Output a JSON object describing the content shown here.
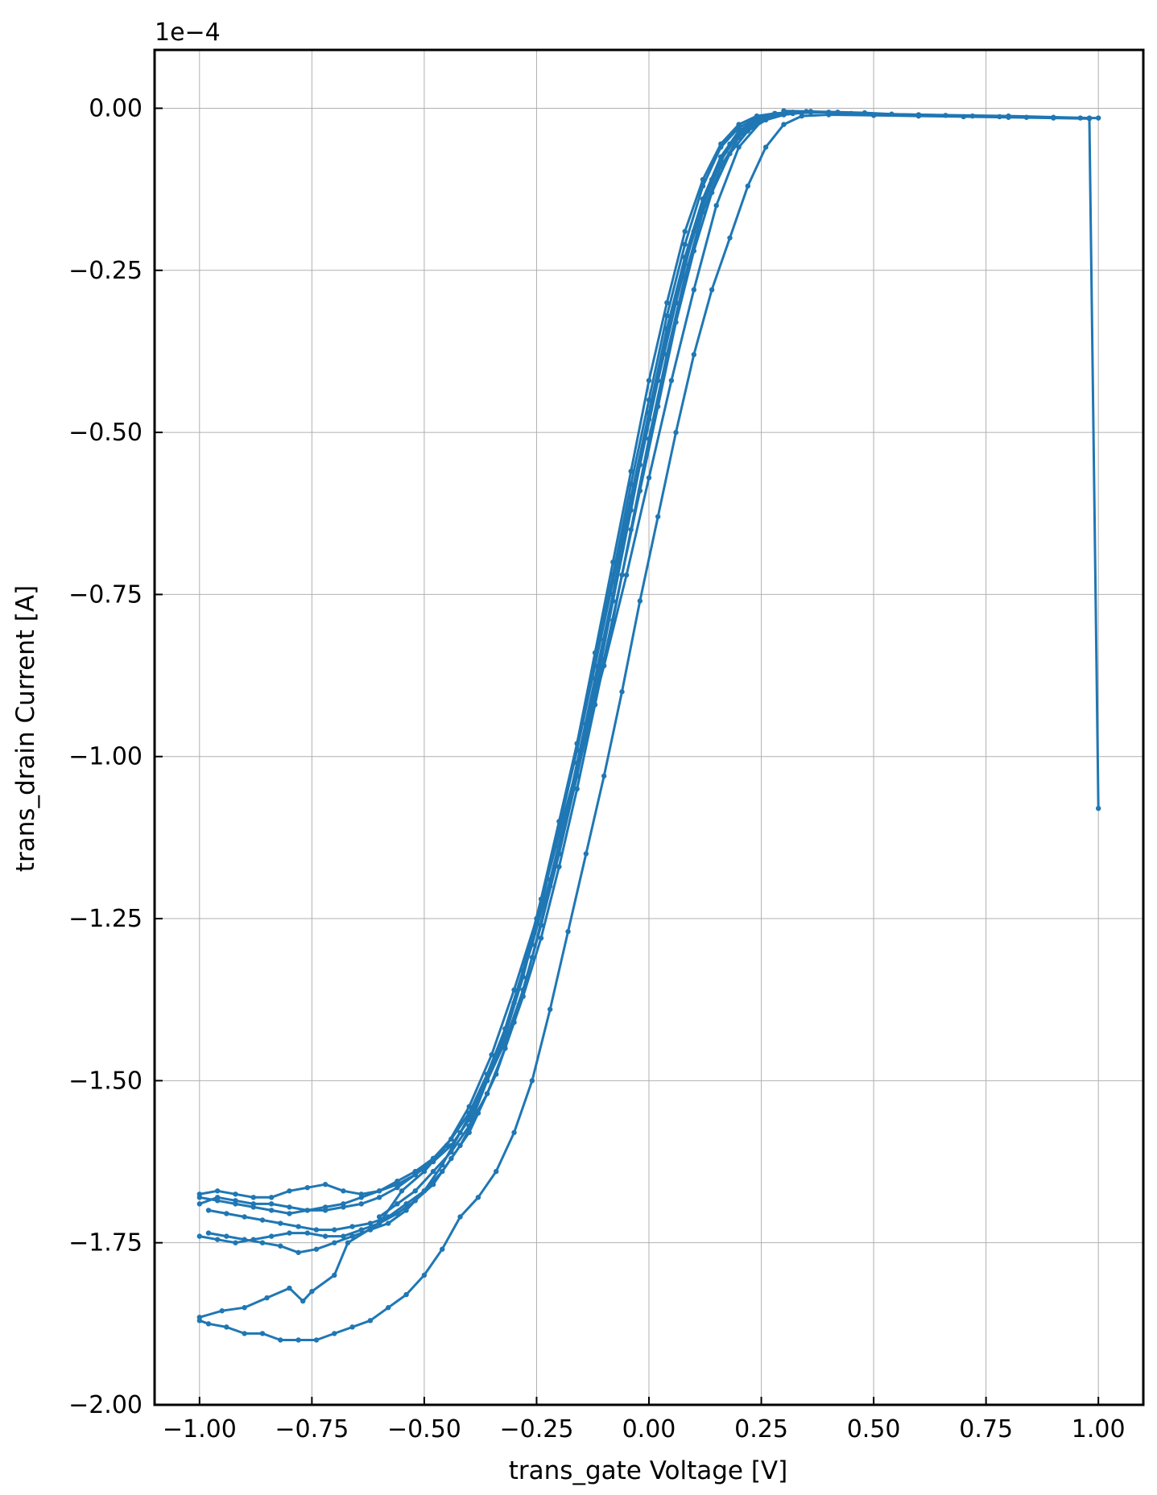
{
  "chart_data": {
    "type": "line",
    "title": "",
    "xlabel": "trans_gate Voltage [V]",
    "ylabel": "trans_drain Current [A]",
    "y_offset_label": "1e−4",
    "xlim": [
      -1.1,
      1.1
    ],
    "ylim": [
      -2.0,
      0.09
    ],
    "x_ticks": [
      -1.0,
      -0.75,
      -0.5,
      -0.25,
      0.0,
      0.25,
      0.5,
      0.75,
      1.0
    ],
    "x_tick_labels": [
      "−1.00",
      "−0.75",
      "−0.50",
      "−0.25",
      "0.00",
      "0.25",
      "0.50",
      "0.75",
      "1.00"
    ],
    "y_ticks": [
      0.0,
      -0.25,
      -0.5,
      -0.75,
      -1.0,
      -1.25,
      -1.5,
      -1.75,
      -2.0
    ],
    "y_tick_labels": [
      "0.00",
      "−0.25",
      "−0.50",
      "−0.75",
      "−1.00",
      "−1.25",
      "−1.50",
      "−1.75",
      "−2.00"
    ],
    "grid": true,
    "color": "#1f77b4",
    "marker": "dot",
    "series": [
      {
        "x": [
          1.0,
          0.98,
          0.9,
          0.8,
          0.7,
          0.6,
          0.5,
          0.4,
          0.34,
          0.3,
          0.26,
          0.22,
          0.18,
          0.14,
          0.1,
          0.06,
          0.02,
          -0.02,
          -0.06,
          -0.1,
          -0.14,
          -0.18,
          -0.22,
          -0.26,
          -0.3,
          -0.34,
          -0.38,
          -0.42,
          -0.46,
          -0.5,
          -0.54,
          -0.58,
          -0.62,
          -0.66,
          -0.7,
          -0.74,
          -0.78,
          -0.82,
          -0.86,
          -0.9,
          -0.94,
          -0.98,
          -1.0
        ],
        "y": [
          -1.08,
          -0.016,
          -0.015,
          -0.014,
          -0.013,
          -0.012,
          -0.011,
          -0.01,
          -0.012,
          -0.025,
          -0.06,
          -0.12,
          -0.2,
          -0.28,
          -0.38,
          -0.5,
          -0.63,
          -0.76,
          -0.9,
          -1.03,
          -1.15,
          -1.27,
          -1.39,
          -1.5,
          -1.58,
          -1.64,
          -1.68,
          -1.71,
          -1.76,
          -1.8,
          -1.83,
          -1.85,
          -1.87,
          -1.88,
          -1.89,
          -1.9,
          -1.9,
          -1.9,
          -1.89,
          -1.89,
          -1.88,
          -1.875,
          -1.87
        ]
      },
      {
        "x": [
          -1.0,
          -0.95,
          -0.9,
          -0.85,
          -0.8,
          -0.77,
          -0.75,
          -0.7,
          -0.67,
          -0.6,
          -0.55,
          -0.5,
          -0.45,
          -0.4,
          -0.35,
          -0.3,
          -0.25,
          -0.2,
          -0.15,
          -0.1,
          -0.05,
          0.0,
          0.05,
          0.1,
          0.15,
          0.2,
          0.25,
          0.3,
          0.35,
          0.45,
          0.6,
          0.8,
          0.98
        ],
        "y": [
          -1.865,
          -1.855,
          -1.85,
          -1.835,
          -1.82,
          -1.84,
          -1.825,
          -1.8,
          -1.75,
          -1.72,
          -1.67,
          -1.64,
          -1.6,
          -1.54,
          -1.46,
          -1.36,
          -1.25,
          -1.12,
          -0.99,
          -0.86,
          -0.72,
          -0.57,
          -0.42,
          -0.28,
          -0.15,
          -0.06,
          -0.02,
          -0.01,
          -0.005,
          -0.008,
          -0.01,
          -0.012,
          -0.015
        ]
      },
      {
        "x": [
          -0.98,
          -0.94,
          -0.9,
          -0.86,
          -0.82,
          -0.78,
          -0.74,
          -0.7,
          -0.66,
          -0.62,
          -0.58,
          -0.54,
          -0.5,
          -0.46,
          -0.42,
          -0.38,
          -0.34,
          -0.3,
          -0.26,
          -0.22,
          -0.18,
          -0.14,
          -0.1,
          -0.06,
          -0.02,
          0.02,
          0.06,
          0.1,
          0.14,
          0.18,
          0.22,
          0.26,
          0.3,
          0.34,
          0.4
        ],
        "y": [
          -1.735,
          -1.74,
          -1.745,
          -1.75,
          -1.755,
          -1.765,
          -1.76,
          -1.75,
          -1.74,
          -1.73,
          -1.72,
          -1.7,
          -1.67,
          -1.63,
          -1.58,
          -1.53,
          -1.46,
          -1.38,
          -1.29,
          -1.19,
          -1.08,
          -0.97,
          -0.85,
          -0.72,
          -0.59,
          -0.46,
          -0.33,
          -0.22,
          -0.13,
          -0.07,
          -0.035,
          -0.018,
          -0.01,
          -0.007,
          -0.006
        ]
      },
      {
        "x": [
          -0.4,
          -0.36,
          -0.32,
          -0.28,
          -0.24,
          -0.2,
          -0.16,
          -0.12,
          -0.08,
          -0.04,
          0.0,
          0.04,
          0.08,
          0.12,
          0.16,
          0.2,
          0.24,
          0.28,
          0.32,
          0.36
        ],
        "y": [
          -1.57,
          -1.5,
          -1.42,
          -1.33,
          -1.22,
          -1.1,
          -0.98,
          -0.85,
          -0.72,
          -0.58,
          -0.45,
          -0.32,
          -0.21,
          -0.12,
          -0.06,
          -0.03,
          -0.015,
          -0.008,
          -0.006,
          -0.005
        ]
      },
      {
        "x": [
          -0.98,
          -0.94,
          -0.9,
          -0.86,
          -0.82,
          -0.78,
          -0.74,
          -0.7,
          -0.66,
          -0.62,
          -0.58,
          -0.54,
          -0.5,
          -0.46,
          -0.42,
          -0.38,
          -0.34,
          -0.3,
          -0.26,
          -0.22,
          -0.18,
          -0.14,
          -0.1,
          -0.06,
          -0.02,
          0.02,
          0.06,
          0.1,
          0.14,
          0.18,
          0.22,
          0.26,
          0.3,
          0.34
        ],
        "y": [
          -1.7,
          -1.705,
          -1.71,
          -1.715,
          -1.72,
          -1.725,
          -1.73,
          -1.73,
          -1.725,
          -1.72,
          -1.71,
          -1.69,
          -1.67,
          -1.64,
          -1.6,
          -1.55,
          -1.49,
          -1.41,
          -1.31,
          -1.2,
          -1.08,
          -0.95,
          -0.82,
          -0.68,
          -0.55,
          -0.42,
          -0.3,
          -0.19,
          -0.11,
          -0.055,
          -0.027,
          -0.014,
          -0.009,
          -0.007
        ]
      },
      {
        "x": [
          -0.6,
          -0.56,
          -0.52,
          -0.48,
          -0.44,
          -0.4,
          -0.36,
          -0.32,
          -0.28,
          -0.24,
          -0.2,
          -0.16,
          -0.12,
          -0.08,
          -0.04,
          0.0,
          0.04,
          0.08,
          0.12,
          0.16,
          0.2,
          0.24,
          0.28,
          0.32,
          0.36
        ],
        "y": [
          -1.71,
          -1.69,
          -1.67,
          -1.64,
          -1.61,
          -1.57,
          -1.52,
          -1.45,
          -1.36,
          -1.26,
          -1.14,
          -1.01,
          -0.88,
          -0.75,
          -0.61,
          -0.47,
          -0.34,
          -0.23,
          -0.14,
          -0.075,
          -0.035,
          -0.017,
          -0.01,
          -0.007,
          -0.006
        ]
      },
      {
        "x": [
          -1.0,
          -0.96,
          -0.92,
          -0.88,
          -0.84,
          -0.8,
          -0.76,
          -0.72,
          -0.68,
          -0.64,
          -0.6,
          -0.56,
          -0.52,
          -0.48,
          -0.44,
          -0.4,
          -0.36,
          -0.32,
          -0.28,
          -0.24,
          -0.2,
          -0.16,
          -0.12,
          -0.08,
          -0.04,
          0.0,
          0.04,
          0.08,
          0.12,
          0.16,
          0.2,
          0.24,
          0.28,
          0.32
        ],
        "y": [
          -1.69,
          -1.68,
          -1.685,
          -1.69,
          -1.69,
          -1.695,
          -1.7,
          -1.7,
          -1.695,
          -1.69,
          -1.68,
          -1.665,
          -1.645,
          -1.62,
          -1.59,
          -1.55,
          -1.49,
          -1.42,
          -1.33,
          -1.23,
          -1.11,
          -0.99,
          -0.86,
          -0.73,
          -0.6,
          -0.47,
          -0.34,
          -0.23,
          -0.14,
          -0.075,
          -0.036,
          -0.018,
          -0.01,
          -0.007
        ]
      },
      {
        "x": [
          -1.0,
          -0.96,
          -0.92,
          -0.88,
          -0.84,
          -0.8,
          -0.76,
          -0.72,
          -0.68,
          -0.64,
          -0.6,
          -0.56,
          -0.52,
          -0.48,
          -0.44,
          -0.4,
          -0.36,
          -0.32,
          -0.28,
          -0.24,
          -0.2,
          -0.16,
          -0.12,
          -0.08,
          -0.04,
          0.0,
          0.04,
          0.08,
          0.12,
          0.16,
          0.2,
          0.24,
          0.28
        ],
        "y": [
          -1.675,
          -1.67,
          -1.675,
          -1.68,
          -1.68,
          -1.67,
          -1.665,
          -1.66,
          -1.67,
          -1.675,
          -1.67,
          -1.66,
          -1.645,
          -1.625,
          -1.6,
          -1.56,
          -1.5,
          -1.43,
          -1.34,
          -1.23,
          -1.11,
          -0.98,
          -0.84,
          -0.7,
          -0.56,
          -0.42,
          -0.3,
          -0.19,
          -0.11,
          -0.055,
          -0.025,
          -0.012,
          -0.008
        ]
      },
      {
        "x": [
          -1.0,
          -0.96,
          -0.92,
          -0.88,
          -0.84,
          -0.8,
          -0.76,
          -0.72,
          -0.68,
          -0.64,
          -0.6,
          -0.56,
          -0.52,
          -0.48,
          -0.44,
          -0.4,
          -0.36,
          -0.32,
          -0.28,
          -0.24,
          -0.2,
          -0.16,
          -0.12,
          -0.08,
          -0.04,
          0.0,
          0.04,
          0.08,
          0.12,
          0.16,
          0.2,
          0.24,
          0.28,
          0.32
        ],
        "y": [
          -1.68,
          -1.685,
          -1.69,
          -1.695,
          -1.7,
          -1.705,
          -1.7,
          -1.695,
          -1.69,
          -1.68,
          -1.67,
          -1.655,
          -1.64,
          -1.62,
          -1.59,
          -1.55,
          -1.5,
          -1.44,
          -1.36,
          -1.26,
          -1.15,
          -1.03,
          -0.9,
          -0.76,
          -0.62,
          -0.48,
          -0.35,
          -0.24,
          -0.15,
          -0.08,
          -0.04,
          -0.02,
          -0.011,
          -0.008
        ]
      },
      {
        "x": [
          -1.0,
          -0.96,
          -0.92,
          -0.88,
          -0.84,
          -0.8,
          -0.76,
          -0.72,
          -0.68,
          -0.64,
          -0.6,
          -0.56,
          -0.52,
          -0.48,
          -0.44,
          -0.4,
          -0.36,
          -0.32,
          -0.28,
          -0.24,
          -0.2,
          -0.16,
          -0.12,
          -0.08,
          -0.04,
          0.0,
          0.04,
          0.08,
          0.12,
          0.16,
          0.2,
          0.24,
          0.28,
          0.32,
          0.36
        ],
        "y": [
          -1.74,
          -1.745,
          -1.75,
          -1.745,
          -1.74,
          -1.735,
          -1.735,
          -1.74,
          -1.74,
          -1.73,
          -1.72,
          -1.705,
          -1.685,
          -1.66,
          -1.62,
          -1.58,
          -1.52,
          -1.45,
          -1.37,
          -1.28,
          -1.17,
          -1.05,
          -0.92,
          -0.79,
          -0.65,
          -0.51,
          -0.38,
          -0.26,
          -0.16,
          -0.09,
          -0.045,
          -0.022,
          -0.012,
          -0.008,
          -0.006
        ]
      },
      {
        "x": [
          0.3,
          0.36,
          0.42,
          0.48,
          0.54,
          0.6,
          0.66,
          0.72,
          0.78,
          0.84,
          0.9,
          0.96,
          1.0
        ],
        "y": [
          -0.004,
          -0.005,
          -0.006,
          -0.007,
          -0.009,
          -0.01,
          -0.011,
          -0.012,
          -0.013,
          -0.014,
          -0.014,
          -0.015,
          -0.015
        ]
      }
    ]
  }
}
